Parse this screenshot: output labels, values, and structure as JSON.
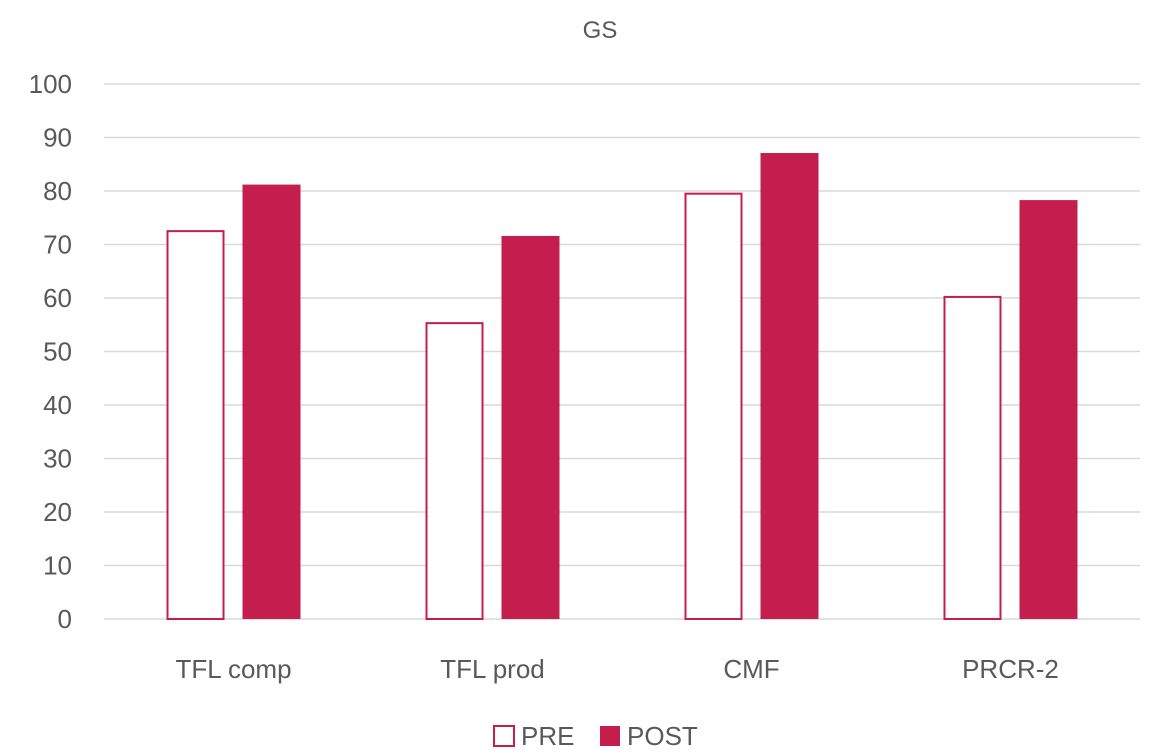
{
  "chart_data": {
    "type": "bar",
    "title": "GS",
    "xlabel": "",
    "ylabel": "",
    "categories": [
      "TFL comp",
      "TFL prod",
      "CMF",
      "PRCR-2"
    ],
    "series": [
      {
        "name": "PRE",
        "values": [
          72.5,
          55.3,
          79.5,
          60.2
        ],
        "style": "outline",
        "color": "#c41e4f"
      },
      {
        "name": "POST",
        "values": [
          81.2,
          71.6,
          87.1,
          78.3
        ],
        "style": "filled",
        "color": "#c41e4f"
      }
    ],
    "ylim": [
      0,
      100
    ],
    "yticks": [
      0,
      10,
      20,
      30,
      40,
      50,
      60,
      70,
      80,
      90,
      100
    ],
    "grid": true,
    "legend_position": "bottom"
  }
}
